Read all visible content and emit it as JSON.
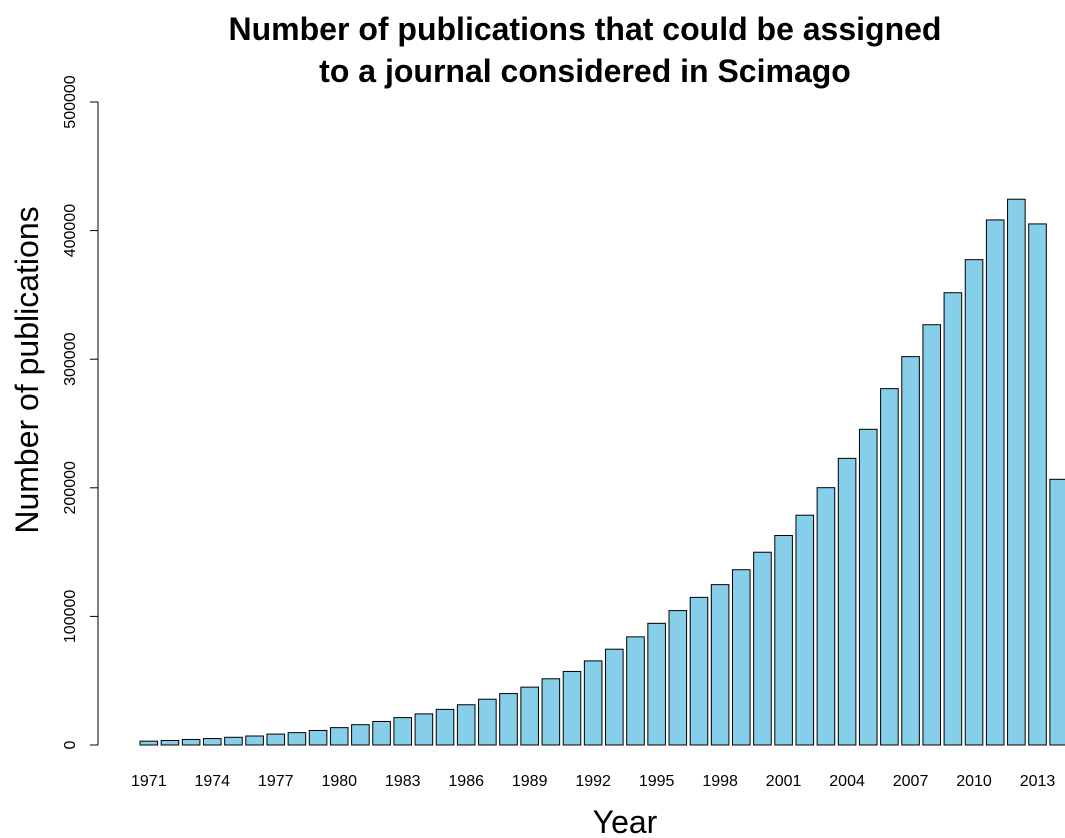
{
  "chart_data": {
    "type": "bar",
    "title_lines": [
      "Number of publications that could be assigned",
      "to a journal considered in Scimago"
    ],
    "xlabel": "Year",
    "ylabel": "Number of publications",
    "ylim": [
      0,
      500000
    ],
    "yticks": [
      0,
      100000,
      200000,
      300000,
      400000,
      500000
    ],
    "ytick_labels": [
      "0",
      "100000",
      "200000",
      "300000",
      "400000",
      "500000"
    ],
    "xtick_labels": [
      "1971",
      "1974",
      "1977",
      "1980",
      "1983",
      "1986",
      "1989",
      "1992",
      "1995",
      "1998",
      "2001",
      "2004",
      "2007",
      "2010",
      "2013"
    ],
    "bar_color": "#87ceeb",
    "categories": [
      "1971",
      "1972",
      "1973",
      "1974",
      "1975",
      "1976",
      "1977",
      "1978",
      "1979",
      "1980",
      "1981",
      "1982",
      "1983",
      "1984",
      "1985",
      "1986",
      "1987",
      "1988",
      "1989",
      "1990",
      "1991",
      "1992",
      "1993",
      "1994",
      "1995",
      "1996",
      "1997",
      "1998",
      "1999",
      "2000",
      "2001",
      "2002",
      "2003",
      "2004",
      "2005",
      "2006",
      "2007",
      "2008",
      "2009",
      "2010",
      "2011",
      "2012",
      "2013",
      "2014"
    ],
    "values": [
      3000,
      3500,
      4300,
      5000,
      6000,
      7000,
      8500,
      9600,
      11300,
      13500,
      15800,
      18300,
      21300,
      24200,
      27700,
      31300,
      35600,
      40000,
      45000,
      51500,
      57200,
      65400,
      74500,
      84100,
      94600,
      104500,
      114800,
      124700,
      136300,
      149900,
      162900,
      178700,
      200100,
      222900,
      245500,
      277100,
      302000,
      326800,
      351700,
      377400,
      408300,
      424400,
      405200,
      206600
    ]
  }
}
